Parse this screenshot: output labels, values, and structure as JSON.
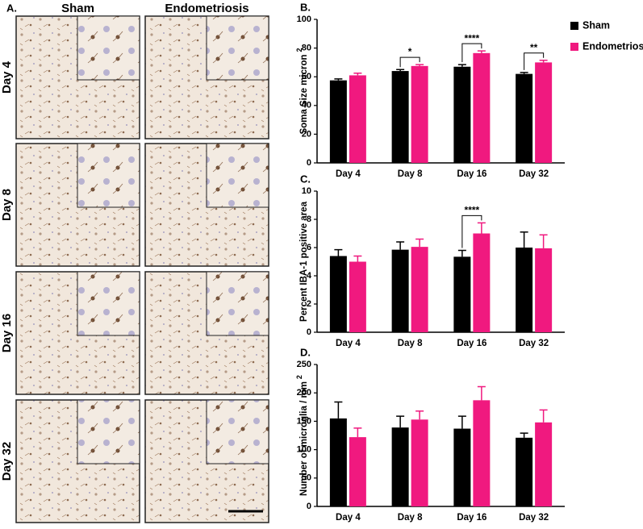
{
  "panel_a": {
    "label": "A.",
    "columns": [
      "Sham",
      "Endometriosis"
    ],
    "rows": [
      "Day 4",
      "Day 8",
      "Day 16",
      "Day 32"
    ]
  },
  "chart_data": [
    {
      "type": "bar",
      "panel_label": "B.",
      "ylabel": "Soma Size micron",
      "ylabel_superscript": "2",
      "categories": [
        "Day 4",
        "Day 8",
        "Day 16",
        "Day 32"
      ],
      "series": [
        {
          "name": "Sham",
          "color": "#000000",
          "values": [
            57.5,
            64,
            67,
            62
          ],
          "errors": [
            1,
            1,
            1.5,
            1
          ]
        },
        {
          "name": "Endometriosis",
          "color": "#f0197f",
          "values": [
            61,
            67.5,
            76.5,
            70
          ],
          "errors": [
            1.5,
            1,
            1.5,
            1.5
          ]
        }
      ],
      "annotations": [
        null,
        "*",
        "****",
        "**"
      ],
      "ylim": [
        0,
        100
      ],
      "yticks": [
        0,
        20,
        40,
        60,
        80,
        100
      ],
      "legend": "upper right outside"
    },
    {
      "type": "bar",
      "panel_label": "C.",
      "ylabel": "Percent IBA-1 positive area",
      "categories": [
        "Day 4",
        "Day 8",
        "Day 16",
        "Day 32"
      ],
      "series": [
        {
          "name": "Sham",
          "color": "#000000",
          "values": [
            5.4,
            5.85,
            5.35,
            6.0
          ],
          "errors": [
            0.45,
            0.55,
            0.45,
            1.1
          ]
        },
        {
          "name": "Endometriosis",
          "color": "#f0197f",
          "values": [
            5.0,
            6.05,
            7.0,
            5.95
          ],
          "errors": [
            0.4,
            0.55,
            0.75,
            0.95
          ]
        }
      ],
      "annotations": [
        null,
        null,
        "****",
        null
      ],
      "ylim": [
        0,
        10
      ],
      "yticks": [
        0,
        2,
        4,
        6,
        8,
        10
      ]
    },
    {
      "type": "bar",
      "panel_label": "D.",
      "ylabel": "Number of microglia / mm",
      "ylabel_superscript": "2",
      "categories": [
        "Day 4",
        "Day 8",
        "Day 16",
        "Day 32"
      ],
      "series": [
        {
          "name": "Sham",
          "color": "#000000",
          "values": [
            155,
            139,
            137,
            121
          ],
          "errors": [
            29,
            20,
            22,
            8
          ]
        },
        {
          "name": "Endometriosis",
          "color": "#f0197f",
          "values": [
            122,
            153,
            187,
            148
          ],
          "errors": [
            16,
            15,
            24,
            22
          ]
        }
      ],
      "ylim": [
        0,
        250
      ],
      "yticks": [
        0,
        50,
        100,
        150,
        200,
        250
      ]
    }
  ]
}
